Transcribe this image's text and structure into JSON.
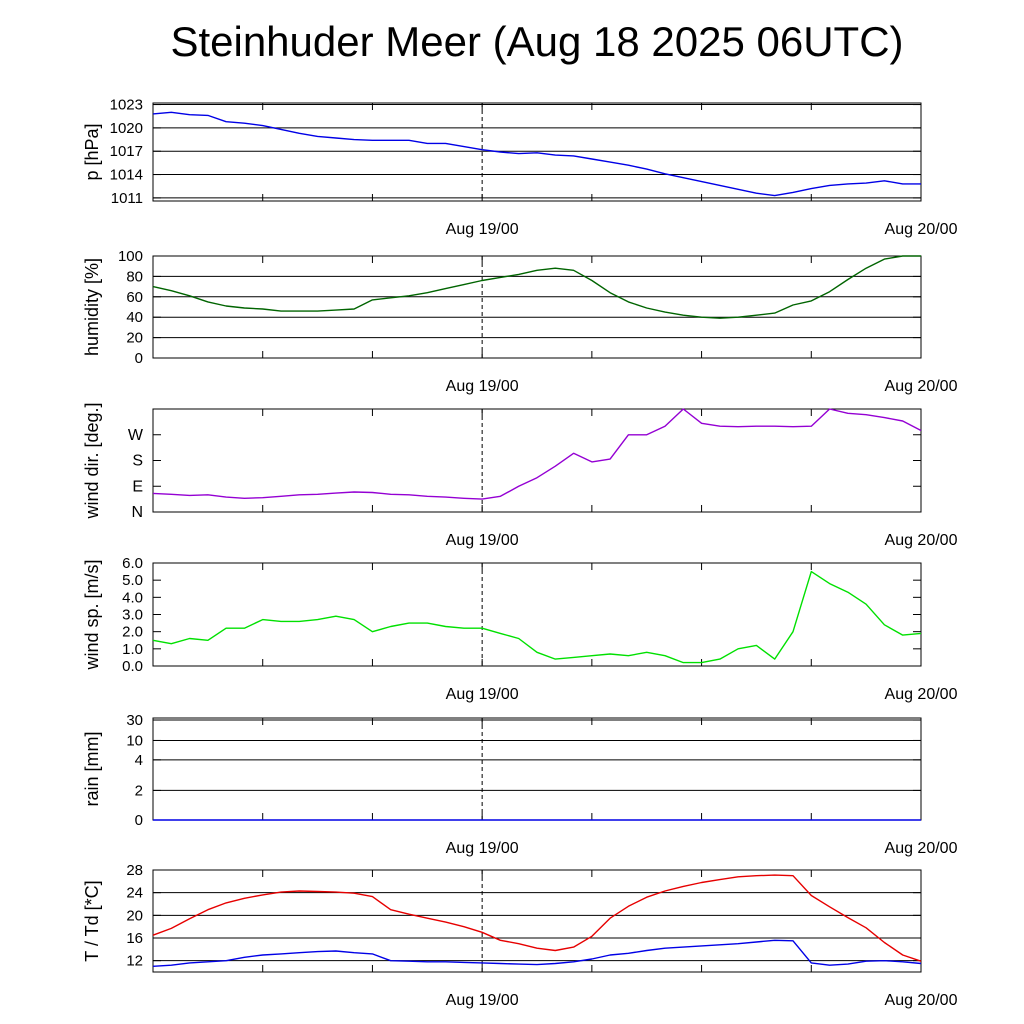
{
  "title": "Steinhuder Meer (Aug 18 2025 06UTC)",
  "colors": {
    "pressure": "#0000e6",
    "humidity": "#006400",
    "wind_dir": "#9400d3",
    "wind_speed": "#00e000",
    "rain": "#0000e6",
    "temperature": "#e60000",
    "dewpoint": "#0000e6"
  },
  "x_axis": {
    "ticks": [
      "Aug 19/00",
      "Aug 20/00"
    ],
    "range_hours": [
      0,
      42
    ],
    "tick_hours": [
      18,
      42
    ]
  },
  "chart_data": [
    {
      "type": "line",
      "id": "pressure",
      "ylabel": "p [hPa]",
      "ylim": [
        1010.6,
        1023.2
      ],
      "yticks": [
        "1023",
        "1020",
        "1017",
        "1014",
        "1011"
      ],
      "ytick_values": [
        1023,
        1020,
        1017,
        1014,
        1011
      ],
      "grid": true,
      "series": [
        {
          "x": [
            0,
            1,
            2,
            3,
            4,
            5,
            6,
            7,
            8,
            9,
            10,
            11,
            12,
            13,
            14,
            15,
            16,
            17,
            18,
            19,
            20,
            21,
            22,
            23,
            24,
            25,
            26,
            27,
            28,
            29,
            30,
            31,
            32,
            33,
            34,
            35,
            36,
            37,
            38,
            39,
            40,
            41,
            42
          ],
          "y": [
            1021.8,
            1022.0,
            1021.7,
            1021.6,
            1020.8,
            1020.6,
            1020.3,
            1019.8,
            1019.3,
            1018.9,
            1018.7,
            1018.5,
            1018.4,
            1018.4,
            1018.4,
            1018.0,
            1018.0,
            1017.6,
            1017.2,
            1016.9,
            1016.7,
            1016.8,
            1016.5,
            1016.4,
            1016.0,
            1015.6,
            1015.2,
            1014.7,
            1014.1,
            1013.6,
            1013.1,
            1012.6,
            1012.1,
            1011.6,
            1011.3,
            1011.7,
            1012.2,
            1012.6,
            1012.8,
            1012.9,
            1013.2,
            1012.8,
            1012.8
          ]
        }
      ]
    },
    {
      "type": "line",
      "id": "humidity",
      "ylabel": "humidity [%]",
      "ylim": [
        0,
        100
      ],
      "yticks": [
        "100",
        "80",
        "60",
        "40",
        "20",
        "0"
      ],
      "ytick_values": [
        100,
        80,
        60,
        40,
        20,
        0
      ],
      "grid": true,
      "series": [
        {
          "x": [
            0,
            1,
            2,
            3,
            4,
            5,
            6,
            7,
            8,
            9,
            10,
            11,
            12,
            13,
            14,
            15,
            16,
            17,
            18,
            19,
            20,
            21,
            22,
            23,
            24,
            25,
            26,
            27,
            28,
            29,
            30,
            31,
            32,
            33,
            34,
            35,
            36,
            37,
            38,
            39,
            40,
            41,
            42
          ],
          "y": [
            70,
            66,
            61,
            55,
            51,
            49,
            48,
            46,
            46,
            46,
            47,
            48,
            57,
            59,
            61,
            64,
            68,
            72,
            76,
            79,
            82,
            86,
            88,
            86,
            76,
            64,
            55,
            49,
            45,
            42,
            40,
            39,
            40,
            42,
            44,
            52,
            56,
            65,
            77,
            88,
            97,
            100,
            100
          ]
        }
      ]
    },
    {
      "type": "line",
      "id": "wind_dir",
      "ylabel": "wind dir. [deg.]",
      "ylim": [
        0,
        360
      ],
      "yticks": [
        "W",
        "S",
        "E",
        "N"
      ],
      "ytick_values": [
        270,
        180,
        90,
        0
      ],
      "grid": false,
      "series": [
        {
          "x": [
            0,
            1,
            2,
            3,
            4,
            5,
            6,
            7,
            8,
            9,
            10,
            11,
            12,
            13,
            14,
            15,
            16,
            17,
            18,
            19,
            20,
            21,
            22,
            23,
            24,
            25,
            26,
            27,
            28,
            29,
            30,
            31,
            32,
            33,
            34,
            35,
            36,
            37,
            38,
            39,
            40,
            41,
            42
          ],
          "y": [
            65,
            62,
            58,
            60,
            52,
            48,
            50,
            55,
            60,
            62,
            66,
            70,
            68,
            62,
            60,
            55,
            52,
            48,
            45,
            55,
            90,
            120,
            160,
            205,
            175,
            185,
            270,
            270,
            300,
            360,
            310,
            300,
            298,
            300,
            300,
            298,
            300,
            360,
            345,
            340,
            330,
            318,
            285
          ]
        }
      ]
    },
    {
      "type": "line",
      "id": "wind_speed",
      "ylabel": "wind sp. [m/s]",
      "ylim": [
        0,
        6.0
      ],
      "yticks": [
        "6.0",
        "5.0",
        "4.0",
        "3.0",
        "2.0",
        "1.0",
        "0.0"
      ],
      "ytick_values": [
        6,
        5,
        4,
        3,
        2,
        1,
        0
      ],
      "grid": false,
      "series": [
        {
          "x": [
            0,
            1,
            2,
            3,
            4,
            5,
            6,
            7,
            8,
            9,
            10,
            11,
            12,
            13,
            14,
            15,
            16,
            17,
            18,
            19,
            20,
            21,
            22,
            23,
            24,
            25,
            26,
            27,
            28,
            29,
            30,
            31,
            32,
            33,
            34,
            35,
            36,
            37,
            38,
            39,
            40,
            41,
            42
          ],
          "y": [
            1.5,
            1.3,
            1.6,
            1.5,
            2.2,
            2.2,
            2.7,
            2.6,
            2.6,
            2.7,
            2.9,
            2.7,
            2.0,
            2.3,
            2.5,
            2.5,
            2.3,
            2.2,
            2.2,
            1.9,
            1.6,
            0.8,
            0.4,
            0.5,
            0.6,
            0.7,
            0.6,
            0.8,
            0.6,
            0.2,
            0.2,
            0.4,
            1.0,
            1.2,
            0.4,
            2.0,
            5.5,
            4.8,
            4.3,
            3.6,
            2.4,
            1.8,
            1.9
          ]
        }
      ]
    },
    {
      "type": "line",
      "id": "rain",
      "ylabel": "rain [mm]",
      "ylim": [
        0,
        32
      ],
      "yticks": [
        "30",
        "10",
        "4",
        "2",
        "0"
      ],
      "ytick_values": [
        30,
        10,
        4,
        2,
        0
      ],
      "grid": true,
      "series": [
        {
          "x": [
            0,
            42
          ],
          "y": [
            0,
            0
          ]
        }
      ]
    },
    {
      "type": "line",
      "id": "temperature",
      "ylabel": "T / Td [*C]",
      "ylim": [
        10,
        28
      ],
      "yticks": [
        "28",
        "24",
        "20",
        "16",
        "12"
      ],
      "ytick_values": [
        28,
        24,
        20,
        16,
        12
      ],
      "grid": true,
      "series": [
        {
          "x": [
            0,
            1,
            2,
            3,
            4,
            5,
            6,
            7,
            8,
            9,
            10,
            11,
            12,
            13,
            14,
            15,
            16,
            17,
            18,
            19,
            20,
            21,
            22,
            23,
            24,
            25,
            26,
            27,
            28,
            29,
            30,
            31,
            32,
            33,
            34,
            35,
            36,
            37,
            38,
            39,
            40,
            41,
            42
          ],
          "y": [
            16.5,
            17.7,
            19.4,
            21.0,
            22.2,
            23.0,
            23.6,
            24.1,
            24.3,
            24.2,
            24.1,
            23.9,
            23.3,
            21.0,
            20.2,
            19.5,
            18.8,
            18.0,
            17.0,
            15.6,
            15.0,
            14.2,
            13.8,
            14.4,
            16.3,
            19.5,
            21.6,
            23.2,
            24.3,
            25.1,
            25.8,
            26.3,
            26.8,
            27.0,
            27.1,
            27.0,
            23.5,
            21.5,
            19.6,
            17.8,
            15.2,
            13.0,
            11.9
          ]
        },
        {
          "x": [
            0,
            1,
            2,
            3,
            4,
            5,
            6,
            7,
            8,
            9,
            10,
            11,
            12,
            13,
            14,
            15,
            16,
            17,
            18,
            19,
            20,
            21,
            22,
            23,
            24,
            25,
            26,
            27,
            28,
            29,
            30,
            31,
            32,
            33,
            34,
            35,
            36,
            37,
            38,
            39,
            40,
            41,
            42
          ],
          "y": [
            11.0,
            11.2,
            11.6,
            11.8,
            12.0,
            12.6,
            13.0,
            13.2,
            13.4,
            13.6,
            13.7,
            13.4,
            13.2,
            12.0,
            11.9,
            11.8,
            11.8,
            11.7,
            11.6,
            11.5,
            11.4,
            11.3,
            11.5,
            11.8,
            12.3,
            13.0,
            13.3,
            13.8,
            14.2,
            14.4,
            14.6,
            14.8,
            15.0,
            15.3,
            15.6,
            15.5,
            11.6,
            11.2,
            11.4,
            11.9,
            12.0,
            11.8,
            11.5
          ]
        }
      ]
    }
  ]
}
